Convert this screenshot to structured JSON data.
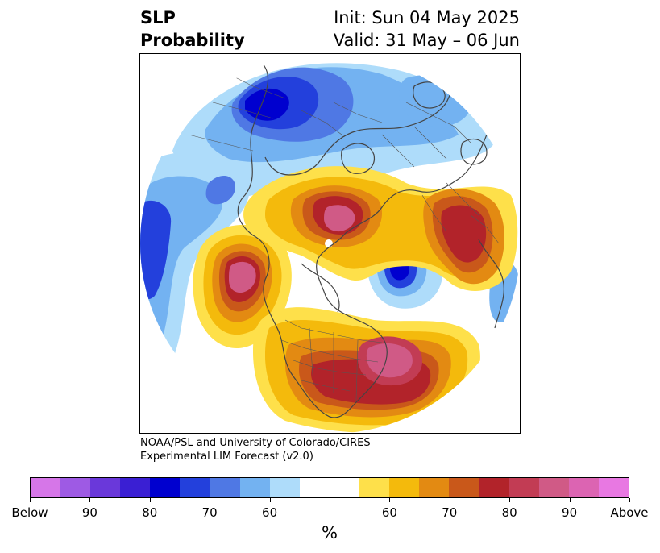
{
  "title": {
    "left_line1": "SLP",
    "left_line2": "Probability",
    "right_line1": "Init: Sun 04 May 2025",
    "right_line2": "Valid: 31 May – 06 Jun"
  },
  "credit": {
    "line1": "NOAA/PSL and University of Colorado/CIRES",
    "line2": "Experimental LIM Forecast (v2.0)"
  },
  "colorbar": {
    "colors": [
      "#d676e8",
      "#9e5ae4",
      "#6a38da",
      "#3a1fd3",
      "#0000cf",
      "#2340dc",
      "#4f78e4",
      "#73b2f1",
      "#aedcfa",
      "#ffffff",
      "#ffffff",
      "#fee04a",
      "#f4ba0c",
      "#e38a12",
      "#c9581a",
      "#b2232a",
      "#c23c54",
      "#d05a86",
      "#dc64b2",
      "#e878e2"
    ],
    "ticks": [
      "Below",
      "90",
      "80",
      "70",
      "60",
      "60",
      "70",
      "80",
      "90",
      "Above"
    ],
    "unit": "%"
  },
  "map": {
    "projection": "north-polar-stereographic",
    "fields": [
      {
        "region": "Western North Pacific / Kamchatka",
        "category": "Above",
        "max_color": "#d05a86"
      },
      {
        "region": "Eastern United States / western Atlantic",
        "category": "Above",
        "max_color": "#d05a86"
      },
      {
        "region": "Kara Sea / Siberia",
        "category": "Above",
        "max_color": "#d05a86"
      },
      {
        "region": "Labrador / Baffin Bay",
        "category": "Above",
        "max_color": "#b2232a"
      },
      {
        "region": "Scandinavia / Barents Sea",
        "category": "Below",
        "max_color": "#0000cf"
      },
      {
        "region": "Southeast Asia / Indian Ocean",
        "category": "Below",
        "max_color": "#2340dc"
      },
      {
        "region": "Northwest Pacific",
        "category": "Below",
        "max_color": "#2340dc"
      },
      {
        "region": "Mediterranean",
        "category": "Below",
        "max_color": "#2340dc"
      }
    ]
  }
}
